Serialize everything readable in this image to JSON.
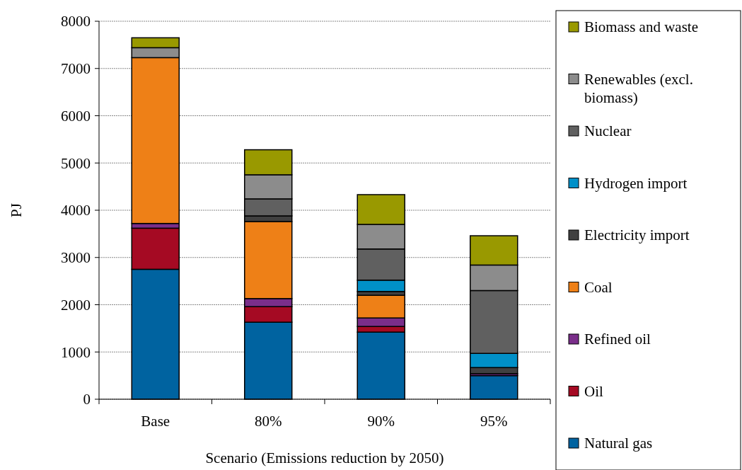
{
  "chart_data": {
    "type": "bar",
    "stacked": true,
    "xlabel": "Scenario (Emissions reduction by 2050)",
    "ylabel": "PJ",
    "categories": [
      "Base",
      "80%",
      "90%",
      "95%"
    ],
    "ylim": [
      0,
      8000
    ],
    "yticks": [
      0,
      1000,
      2000,
      3000,
      4000,
      5000,
      6000,
      7000,
      8000
    ],
    "grid": "y",
    "legend": "right",
    "series": [
      {
        "name": "Natural gas",
        "color": "#0063a0",
        "values": [
          2750,
          1630,
          1420,
          500
        ]
      },
      {
        "name": "Oil",
        "color": "#a50a23",
        "values": [
          870,
          330,
          120,
          null
        ]
      },
      {
        "name": "Refined oil",
        "color": "#7a2e8a",
        "values": [
          100,
          170,
          180,
          40
        ]
      },
      {
        "name": "Coal",
        "color": "#ee8017",
        "values": [
          3510,
          1630,
          480,
          0
        ]
      },
      {
        "name": "Electricity import",
        "color": "#404040",
        "values": [
          0,
          120,
          80,
          130
        ]
      },
      {
        "name": "Hydrogen import",
        "color": "#0090c8",
        "values": [
          0,
          0,
          240,
          300
        ]
      },
      {
        "name": "Nuclear",
        "color": "#606060",
        "values": [
          0,
          360,
          660,
          1330
        ]
      },
      {
        "name": "Renewables (excl. biomass)",
        "color": "#8c8c8c",
        "values": [
          210,
          510,
          520,
          540
        ]
      },
      {
        "name": "Biomass and waste",
        "color": "#999900",
        "values": [
          210,
          530,
          630,
          620
        ]
      }
    ]
  }
}
